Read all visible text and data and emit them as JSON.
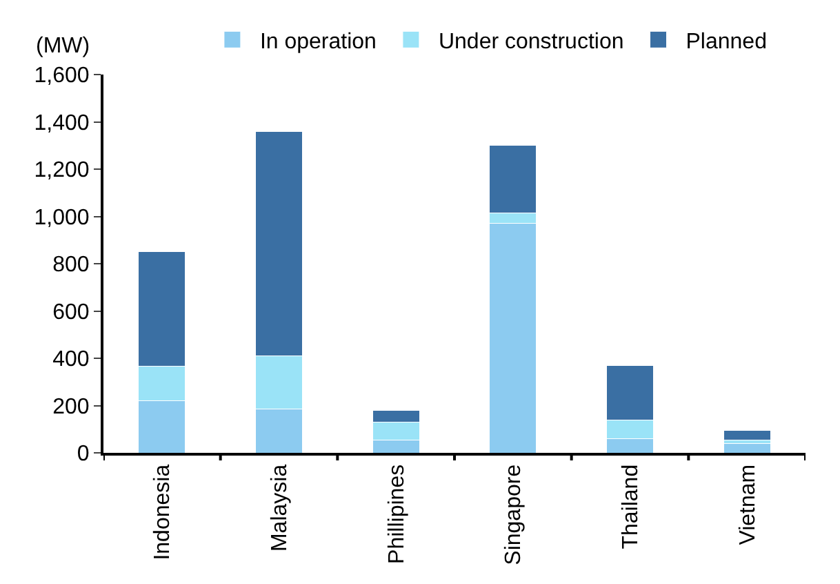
{
  "chart_data": {
    "type": "bar",
    "stacked": true,
    "ylabel": "(MW)",
    "categories": [
      "Indonesia",
      "Malaysia",
      "Phillipines",
      "Singapore",
      "Thailand",
      "Vietnam"
    ],
    "series": [
      {
        "name": "In operation",
        "color": "#8ccbf0",
        "values": [
          220,
          185,
          55,
          970,
          60,
          40
        ]
      },
      {
        "name": "Under construction",
        "color": "#9ae3f7",
        "values": [
          145,
          225,
          75,
          45,
          80,
          15
        ]
      },
      {
        "name": "Planned",
        "color": "#3a6fa3",
        "values": [
          485,
          950,
          50,
          285,
          230,
          40
        ]
      }
    ],
    "ylim": [
      0,
      1600
    ],
    "yticks": [
      0,
      {
        "value": 200,
        "label": "200"
      },
      {
        "value": 400,
        "label": "400"
      },
      {
        "value": 600,
        "label": "600"
      },
      {
        "value": 800,
        "label": "800"
      },
      {
        "value": 1000,
        "label": "1,000"
      },
      {
        "value": 1200,
        "label": "1,200"
      },
      {
        "value": 1400,
        "label": "1,400"
      },
      {
        "value": 1600,
        "label": "1,600"
      }
    ],
    "legend": "top"
  }
}
